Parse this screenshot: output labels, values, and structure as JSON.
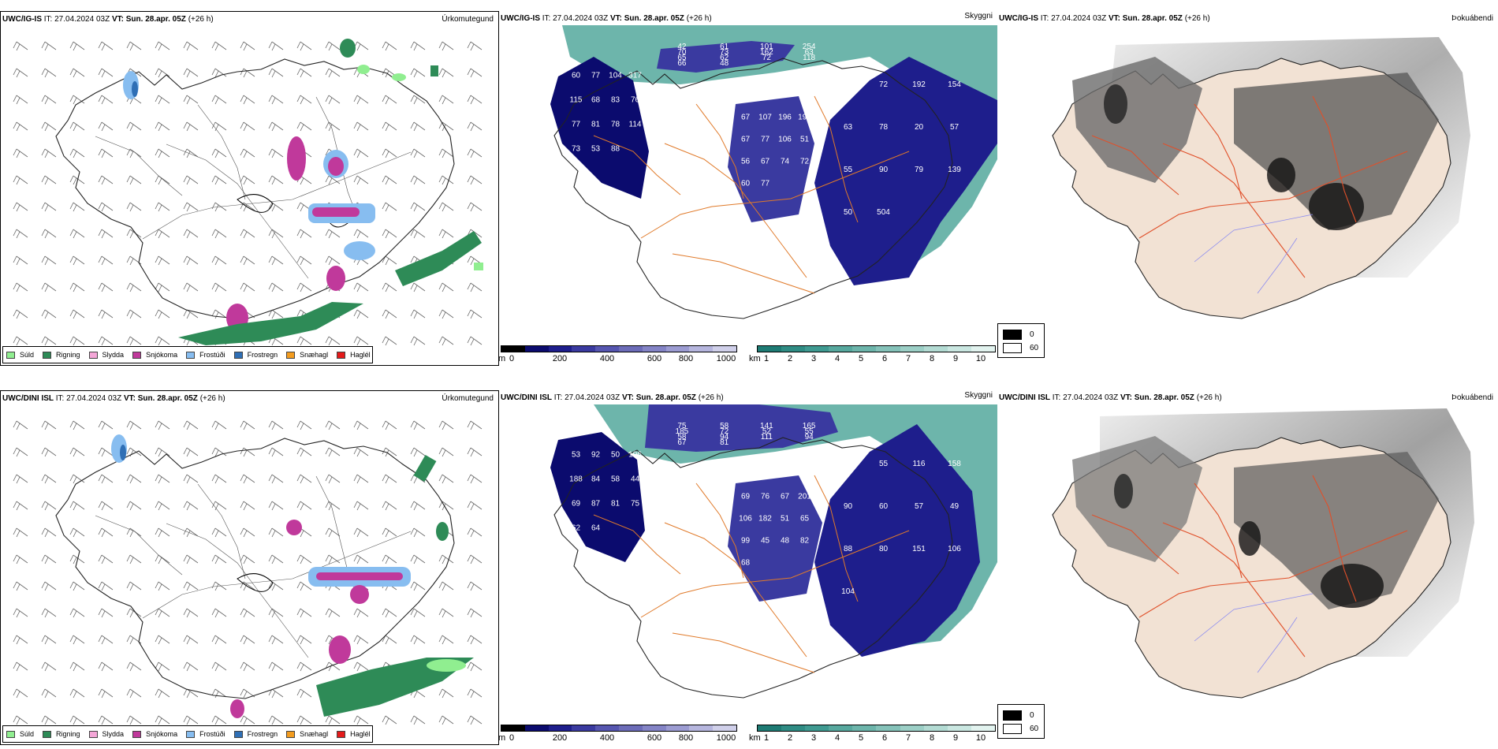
{
  "rows": [
    {
      "model": "UWC/IG-IS",
      "it_label": "IT:",
      "it_value": "27.04.2024 03Z",
      "vt_label": "VT:",
      "vt_value": "Sun. 28.apr. 05Z",
      "lead": "(+26 h)",
      "panels": {
        "precip": {
          "title": "Úrkomutegund"
        },
        "vis": {
          "title": "Skyggni",
          "labels": [
            "60",
            "42",
            "50",
            "67",
            "77",
            "61",
            "72",
            "107",
            "104",
            "101",
            "192",
            "196",
            "317",
            "254",
            "154",
            "191",
            "115",
            "70",
            "63",
            "67",
            "68",
            "73",
            "78",
            "77",
            "83",
            "162",
            "20",
            "106",
            "76",
            "63",
            "57",
            "51",
            "77",
            "65",
            "55",
            "56",
            "81",
            "62",
            "90",
            "67",
            "78",
            "72",
            "79",
            "74",
            "114",
            "118",
            "139",
            "72",
            "73",
            "66",
            "50",
            "60",
            "53",
            "48",
            "504",
            "77",
            "88"
          ]
        },
        "fog": {
          "title": "Þokuábendi"
        }
      }
    },
    {
      "model": "UWC/DINI ISL",
      "it_label": "IT:",
      "it_value": "27.04.2024 03Z",
      "vt_label": "VT:",
      "vt_value": "Sun. 28.apr. 05Z",
      "lead": "(+26 h)",
      "panels": {
        "precip": {
          "title": "Úrkomutegund"
        },
        "vis": {
          "title": "Skyggni",
          "labels": [
            "53",
            "75",
            "48",
            "69",
            "92",
            "58",
            "55",
            "76",
            "50",
            "141",
            "116",
            "67",
            "196",
            "165",
            "158",
            "201",
            "188",
            "185",
            "90",
            "106",
            "84",
            "72",
            "60",
            "182",
            "58",
            "52",
            "57",
            "51",
            "44",
            "55",
            "49",
            "65",
            "69",
            "58",
            "88",
            "99",
            "87",
            "94",
            "80",
            "45",
            "81",
            "111",
            "151",
            "48",
            "75",
            "94",
            "106",
            "82",
            "62",
            "67",
            "104",
            "68",
            "64",
            "81"
          ]
        },
        "fog": {
          "title": "Þokuábendi"
        }
      }
    }
  ],
  "precip_legend": [
    {
      "label": "Súld",
      "color": "#90ee90"
    },
    {
      "label": "Rigning",
      "color": "#2e8b57"
    },
    {
      "label": "Slydda",
      "color": "#f4a6d7"
    },
    {
      "label": "Snjókoma",
      "color": "#c0399b"
    },
    {
      "label": "Frostúði",
      "color": "#87bdf0"
    },
    {
      "label": "Frostregn",
      "color": "#2f6fb5"
    },
    {
      "label": "Snæhagl",
      "color": "#f39c1f"
    },
    {
      "label": "Haglél",
      "color": "#e41a1a"
    }
  ],
  "vis_scale_m": {
    "unit": "m",
    "ticks": [
      "0",
      "200",
      "400",
      "600",
      "800",
      "1000"
    ],
    "colors": [
      "#000000",
      "#0b0b6e",
      "#1e1e8c",
      "#3a3aa0",
      "#5656b0",
      "#6c6cb8",
      "#8484c6",
      "#9c9cd2",
      "#b6b6de",
      "#d0d0ea"
    ]
  },
  "vis_scale_km": {
    "unit": "km",
    "ticks": [
      "1",
      "2",
      "3",
      "4",
      "5",
      "6",
      "7",
      "8",
      "9",
      "10"
    ],
    "colors": [
      "#1e7b74",
      "#2f8c84",
      "#3f9a91",
      "#57a89e",
      "#6db5ab",
      "#85c2b9",
      "#9ccfc6",
      "#b3dbd3",
      "#cae7e1",
      "#e2f3ef"
    ]
  },
  "fog_legend": [
    {
      "label": "0",
      "color": "#000000"
    },
    {
      "label": "60",
      "color": "#ffffff"
    }
  ]
}
